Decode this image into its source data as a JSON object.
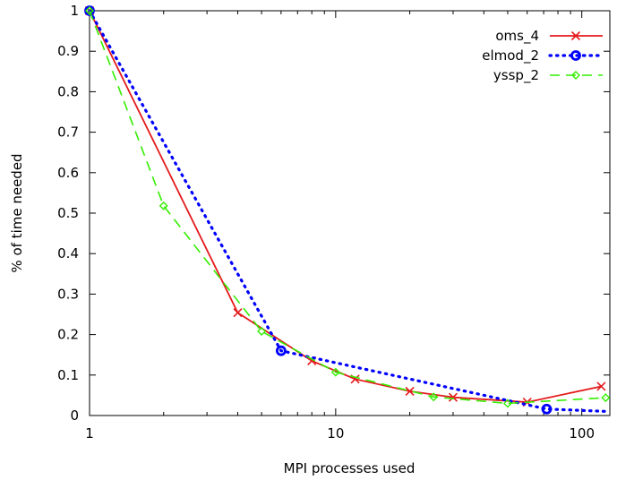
{
  "chart_data": {
    "type": "line",
    "xlabel": "MPI processes used",
    "ylabel": "% of time needed",
    "xscale": "log",
    "xlim": [
      1,
      130
    ],
    "ylim": [
      0,
      1
    ],
    "xticks": [
      1,
      10,
      100
    ],
    "yticks": [
      0,
      0.1,
      0.2,
      0.3,
      0.4,
      0.5,
      0.6,
      0.7,
      0.8,
      0.9,
      1
    ],
    "grid": false,
    "legend_position": "top-right",
    "series": [
      {
        "name": "oms_4",
        "color": "#e41a1c",
        "line_style": "solid",
        "marker": "x",
        "points": [
          [
            1,
            1.0
          ],
          [
            4,
            0.254
          ],
          [
            8,
            0.135
          ],
          [
            12,
            0.09
          ],
          [
            20,
            0.06
          ],
          [
            30,
            0.045
          ],
          [
            60,
            0.033
          ],
          [
            120,
            0.072
          ]
        ]
      },
      {
        "name": "elmod_2",
        "color": "#0000ff",
        "line_style": "dotted",
        "marker": "circle",
        "points": [
          [
            1,
            1.0
          ],
          [
            6,
            0.16
          ],
          [
            72,
            0.016
          ],
          [
            128,
            0.01
          ]
        ],
        "marked_points": [
          [
            1,
            1.0
          ],
          [
            6,
            0.16
          ],
          [
            72,
            0.016
          ]
        ]
      },
      {
        "name": "yssp_2",
        "color": "#33ee00",
        "line_style": "dashed",
        "marker": "diamond",
        "points": [
          [
            1,
            1.0
          ],
          [
            2,
            0.518
          ],
          [
            5,
            0.208
          ],
          [
            10,
            0.107
          ],
          [
            25,
            0.046
          ],
          [
            50,
            0.03
          ],
          [
            125,
            0.044
          ]
        ]
      }
    ]
  }
}
